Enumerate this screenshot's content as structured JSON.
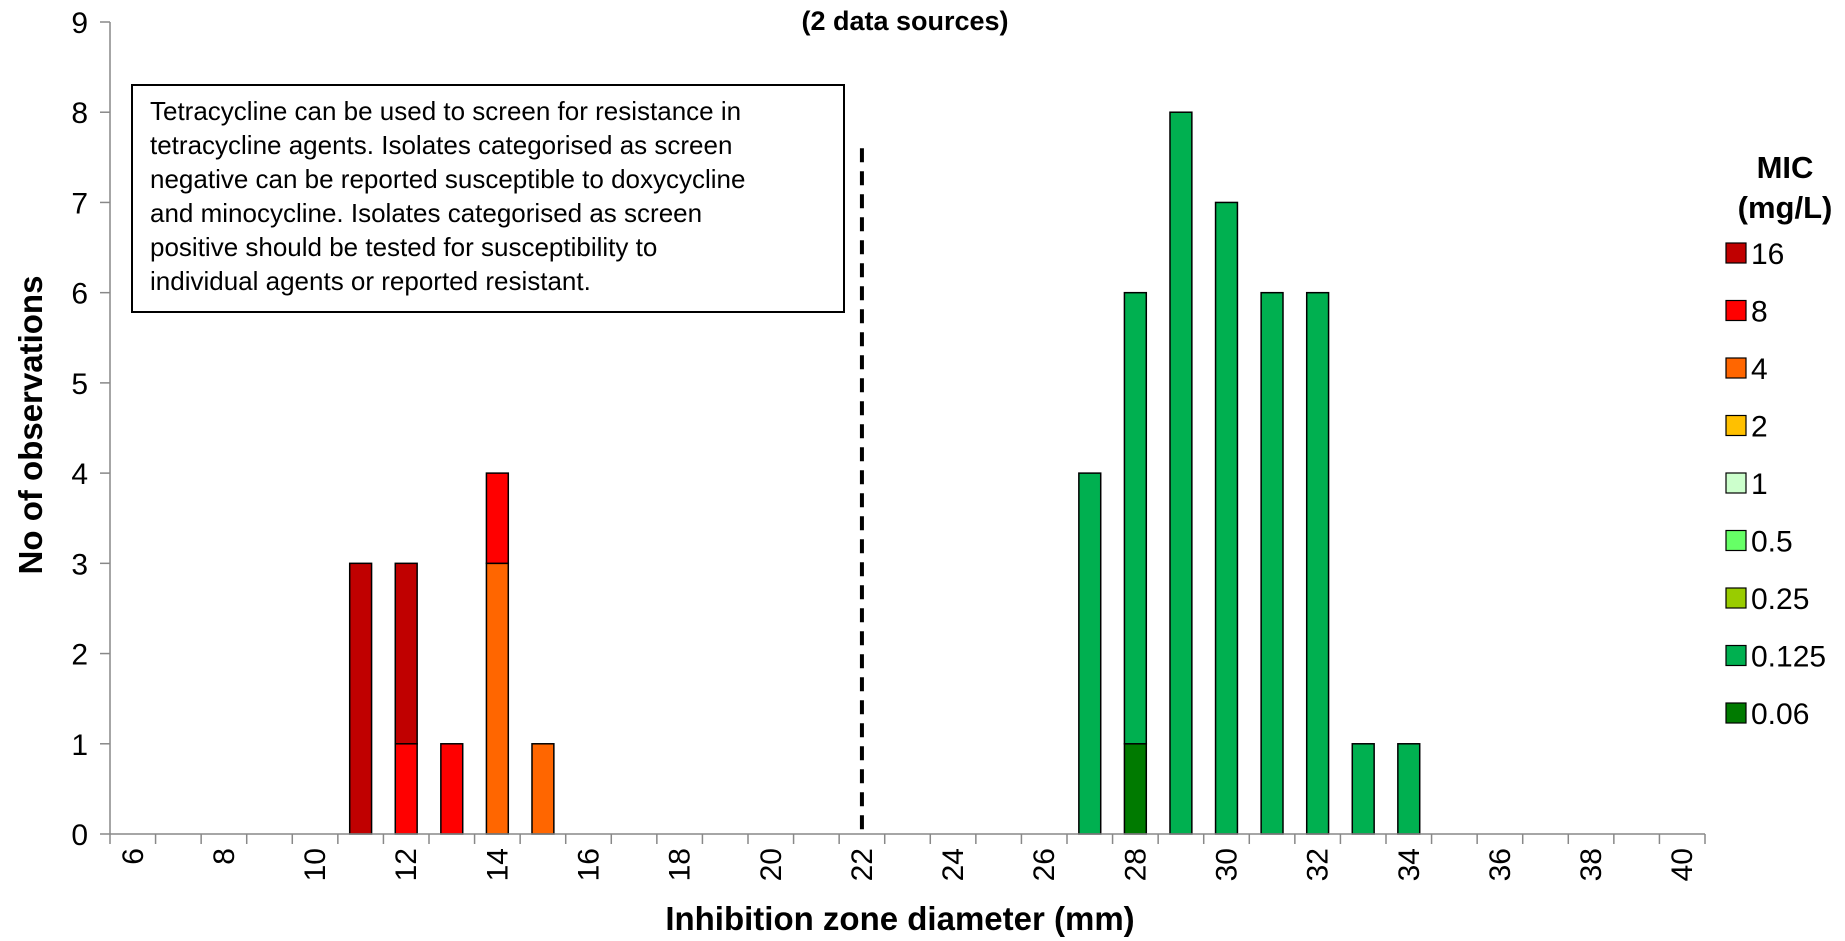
{
  "chart_data": {
    "type": "bar",
    "stacked": true,
    "title": "(2 data sources)",
    "xlabel": "Inhibition zone diameter (mm)",
    "ylabel": "No of observations",
    "x": [
      6,
      7,
      8,
      9,
      10,
      11,
      12,
      13,
      14,
      15,
      16,
      17,
      18,
      19,
      20,
      21,
      22,
      23,
      24,
      25,
      26,
      27,
      28,
      29,
      30,
      31,
      32,
      33,
      34,
      35,
      36,
      37,
      38,
      39,
      40
    ],
    "x_tick_labels": [
      "6",
      "8",
      "10",
      "12",
      "14",
      "16",
      "18",
      "20",
      "22",
      "24",
      "26",
      "28",
      "30",
      "32",
      "34",
      "36",
      "38",
      "40"
    ],
    "xlim": [
      6,
      40
    ],
    "ylim": [
      0,
      9
    ],
    "y_ticks": [
      "0",
      "1",
      "2",
      "3",
      "4",
      "5",
      "6",
      "7",
      "8",
      "9"
    ],
    "breakpoint_line_x": 22,
    "annotation": "Tetracycline can be used to screen for resistance in tetracycline agents. Isolates categorised as screen negative can be reported susceptible to doxycycline and minocycline. Isolates categorised as screen positive should be tested for susceptibility to individual agents or reported resistant.",
    "annotation_lines": [
      "Tetracycline can be used to screen for resistance in",
      "tetracycline agents. Isolates categorised as screen",
      "negative can be reported susceptible to doxycycline",
      "and minocycline. Isolates categorised as screen",
      "positive should be tested for susceptibility to",
      "individual agents or reported resistant."
    ],
    "legend": {
      "title_lines": [
        "MIC",
        "(mg/L)"
      ],
      "placement": "right"
    },
    "series": [
      {
        "name": "0.06",
        "color": "#007a00",
        "values": {
          "28": 1
        }
      },
      {
        "name": "0.125",
        "color": "#00b050",
        "values": {
          "27": 4,
          "28": 5,
          "29": 8,
          "30": 7,
          "31": 6,
          "32": 6,
          "33": 1,
          "34": 1
        }
      },
      {
        "name": "0.25",
        "color": "#99cc00",
        "values": {}
      },
      {
        "name": "0.5",
        "color": "#66ff66",
        "values": {}
      },
      {
        "name": "1",
        "color": "#ccffcc",
        "values": {}
      },
      {
        "name": "2",
        "color": "#ffc000",
        "values": {}
      },
      {
        "name": "4",
        "color": "#ff6600",
        "values": {
          "14": 3,
          "15": 1
        }
      },
      {
        "name": "8",
        "color": "#ff0000",
        "values": {
          "12": 1,
          "13": 1,
          "14": 1
        }
      },
      {
        "name": "16",
        "color": "#c00000",
        "values": {
          "11": 3,
          "12": 2
        }
      }
    ]
  }
}
